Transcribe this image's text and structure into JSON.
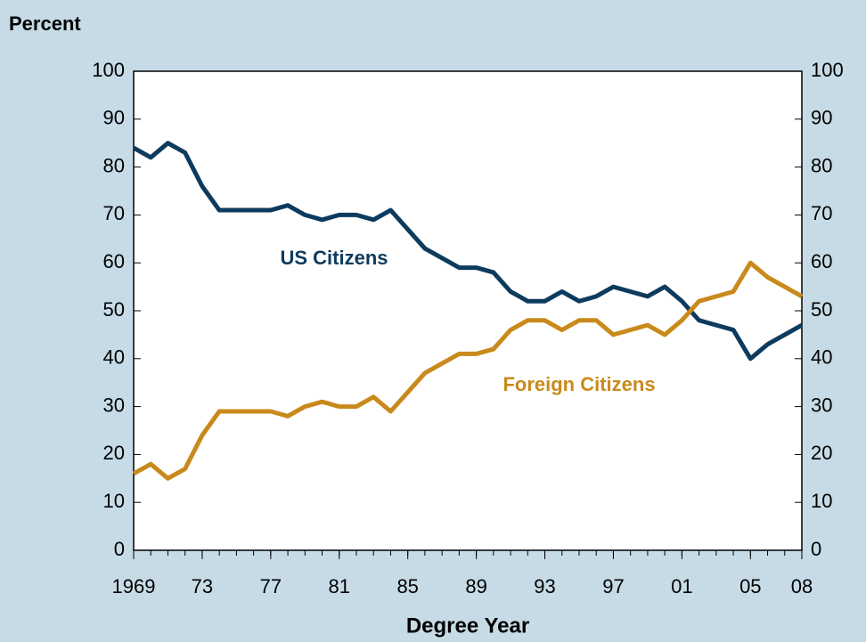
{
  "chart_data": {
    "type": "line",
    "title": "Percent",
    "xlabel": "Degree Year",
    "x": [
      1969,
      1970,
      1971,
      1972,
      1973,
      1974,
      1975,
      1976,
      1977,
      1978,
      1979,
      1980,
      1981,
      1982,
      1983,
      1984,
      1985,
      1986,
      1987,
      1988,
      1989,
      1990,
      1991,
      1992,
      1993,
      1994,
      1995,
      1996,
      1997,
      1998,
      1999,
      2000,
      2001,
      2002,
      2003,
      2004,
      2005,
      2006,
      2007,
      2008
    ],
    "series": [
      {
        "name": "US Citizens",
        "color": "#0d3b5e",
        "values": [
          84,
          82,
          85,
          83,
          76,
          71,
          71,
          71,
          71,
          72,
          70,
          69,
          70,
          70,
          69,
          71,
          67,
          63,
          61,
          59,
          59,
          58,
          54,
          52,
          52,
          54,
          52,
          53,
          55,
          54,
          53,
          55,
          52,
          48,
          47,
          46,
          40,
          43,
          45,
          47
        ]
      },
      {
        "name": "Foreign Citizens",
        "color": "#c98a1c",
        "values": [
          16,
          18,
          15,
          17,
          24,
          29,
          29,
          29,
          29,
          28,
          30,
          31,
          30,
          30,
          32,
          29,
          33,
          37,
          39,
          41,
          41,
          42,
          46,
          48,
          48,
          46,
          48,
          48,
          45,
          46,
          47,
          45,
          48,
          52,
          53,
          54,
          60,
          57,
          55,
          53
        ]
      }
    ],
    "xlim": [
      1969,
      2008
    ],
    "xticks": [
      1969,
      {
        "value": 1973,
        "label": "73"
      },
      {
        "value": 1977,
        "label": "77"
      },
      {
        "value": 1981,
        "label": "81"
      },
      {
        "value": 1985,
        "label": "85"
      },
      {
        "value": 1989,
        "label": "89"
      },
      {
        "value": 1993,
        "label": "93"
      },
      {
        "value": 1997,
        "label": "97"
      },
      {
        "value": 2001,
        "label": "01"
      },
      {
        "value": 2005,
        "label": "05"
      },
      {
        "value": 2008,
        "label": "08"
      }
    ],
    "ylim": [
      0,
      100
    ],
    "yticks": [
      0,
      10,
      20,
      30,
      40,
      50,
      60,
      70,
      80,
      90,
      100
    ],
    "y2lim": [
      0,
      100
    ],
    "y2ticks": [
      0,
      10,
      20,
      30,
      40,
      50,
      60,
      70,
      80,
      90,
      100
    ]
  }
}
